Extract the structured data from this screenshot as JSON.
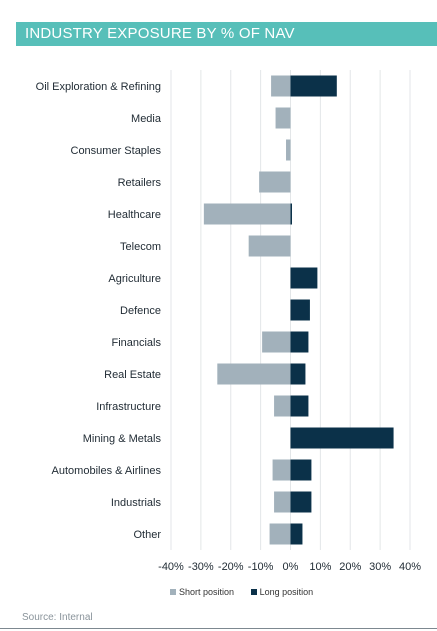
{
  "header": {
    "title": "INDUSTRY EXPOSURE BY % OF NAV"
  },
  "footer": {
    "source": "Source: Internal"
  },
  "colors": {
    "title_bg": "#57bfb9",
    "short": "#a2b1bb",
    "long": "#0b3149",
    "grid": "#e3e6e8"
  },
  "chart_data": {
    "type": "bar",
    "orientation": "horizontal",
    "stacked": false,
    "categories": [
      "Oil Exploration & Refining",
      "Media",
      "Consumer Staples",
      "Retailers",
      "Healthcare",
      "Telecom",
      "Agriculture",
      "Defence",
      "Financials",
      "Real Estate",
      "Infrastructure",
      "Mining & Metals",
      "Automobiles & Airlines",
      "Industrials",
      "Other"
    ],
    "series": [
      {
        "name": "Short position",
        "color": "#a2b1bb",
        "values": [
          -6.5,
          -5,
          -1.5,
          -10.5,
          -29,
          -14,
          0,
          0,
          -9.5,
          -24.5,
          -5.5,
          0,
          -6,
          -5.5,
          -7
        ]
      },
      {
        "name": "Long position",
        "color": "#0b3149",
        "values": [
          15.5,
          0,
          0,
          0,
          0.5,
          0,
          9,
          6.5,
          6,
          5,
          6,
          34.5,
          7,
          7,
          4
        ]
      }
    ],
    "xlim": [
      -40,
      40
    ],
    "xticks": [
      -40,
      -30,
      -20,
      -10,
      0,
      10,
      20,
      30,
      40
    ],
    "xtick_labels": [
      "-40%",
      "-30%",
      "-20%",
      "-10%",
      "0%",
      "10%",
      "20%",
      "30%",
      "40%"
    ],
    "grid": true,
    "legend_position": "bottom-center"
  }
}
